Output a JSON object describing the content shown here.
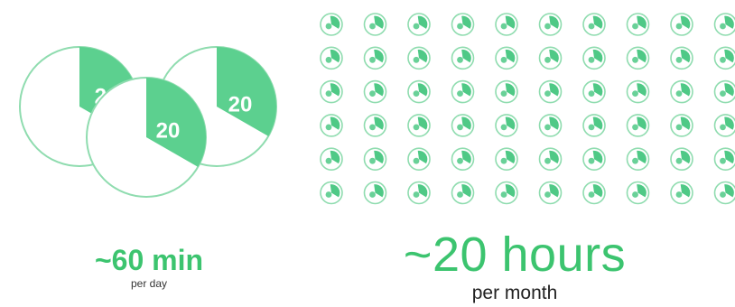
{
  "colors": {
    "accent": "#5cd08f",
    "outline": "#8fdcaf",
    "grid_icon": "#4fc986",
    "text_green": "#3cc46f",
    "text_dark": "#222222"
  },
  "daily_sessions": [
    {
      "label": "20",
      "icon": "clock-pie-icon"
    },
    {
      "label": "20",
      "icon": "clock-pie-icon"
    },
    {
      "label": "20",
      "icon": "clock-pie-icon"
    }
  ],
  "session_fraction": 0.333,
  "monthly_grid": {
    "icon": "clock-pie-icon",
    "rows": 6,
    "columns": 10
  },
  "daily_total": {
    "value": "~60 min",
    "unit": "per day"
  },
  "monthly_total": {
    "value": "~20 hours",
    "unit": "per month"
  }
}
